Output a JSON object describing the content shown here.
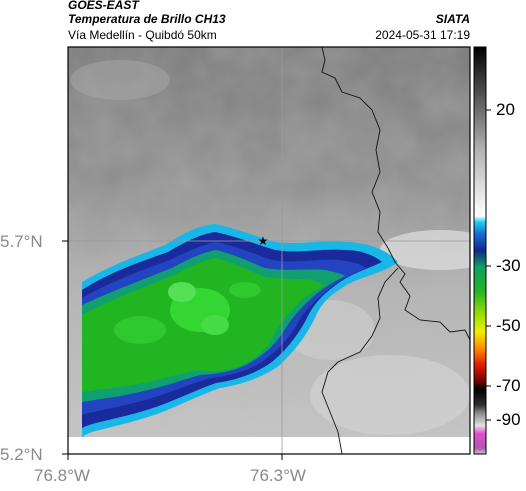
{
  "header": {
    "satellite": "GOES-EAST",
    "product": "Temperatura de Brillo CH13",
    "brand": "SIATA",
    "subtitle": "Vía Medellín - Quibdó 50km",
    "timestamp": "2024-05-31 17:19"
  },
  "map": {
    "lat_ticks": [
      "5.7°N",
      "5.2°N"
    ],
    "lon_ticks": [
      "76.8°W",
      "76.3°W"
    ],
    "marker": "star-marker"
  },
  "colorbar": {
    "labels": [
      "20",
      "-30",
      "-50",
      "-70",
      "-90"
    ]
  },
  "colors": {
    "cold_core": "#22b522",
    "cyan_edge": "#19b6e8",
    "navy_band": "#1a2a9a",
    "warm_gray": "#8c8c8c"
  }
}
